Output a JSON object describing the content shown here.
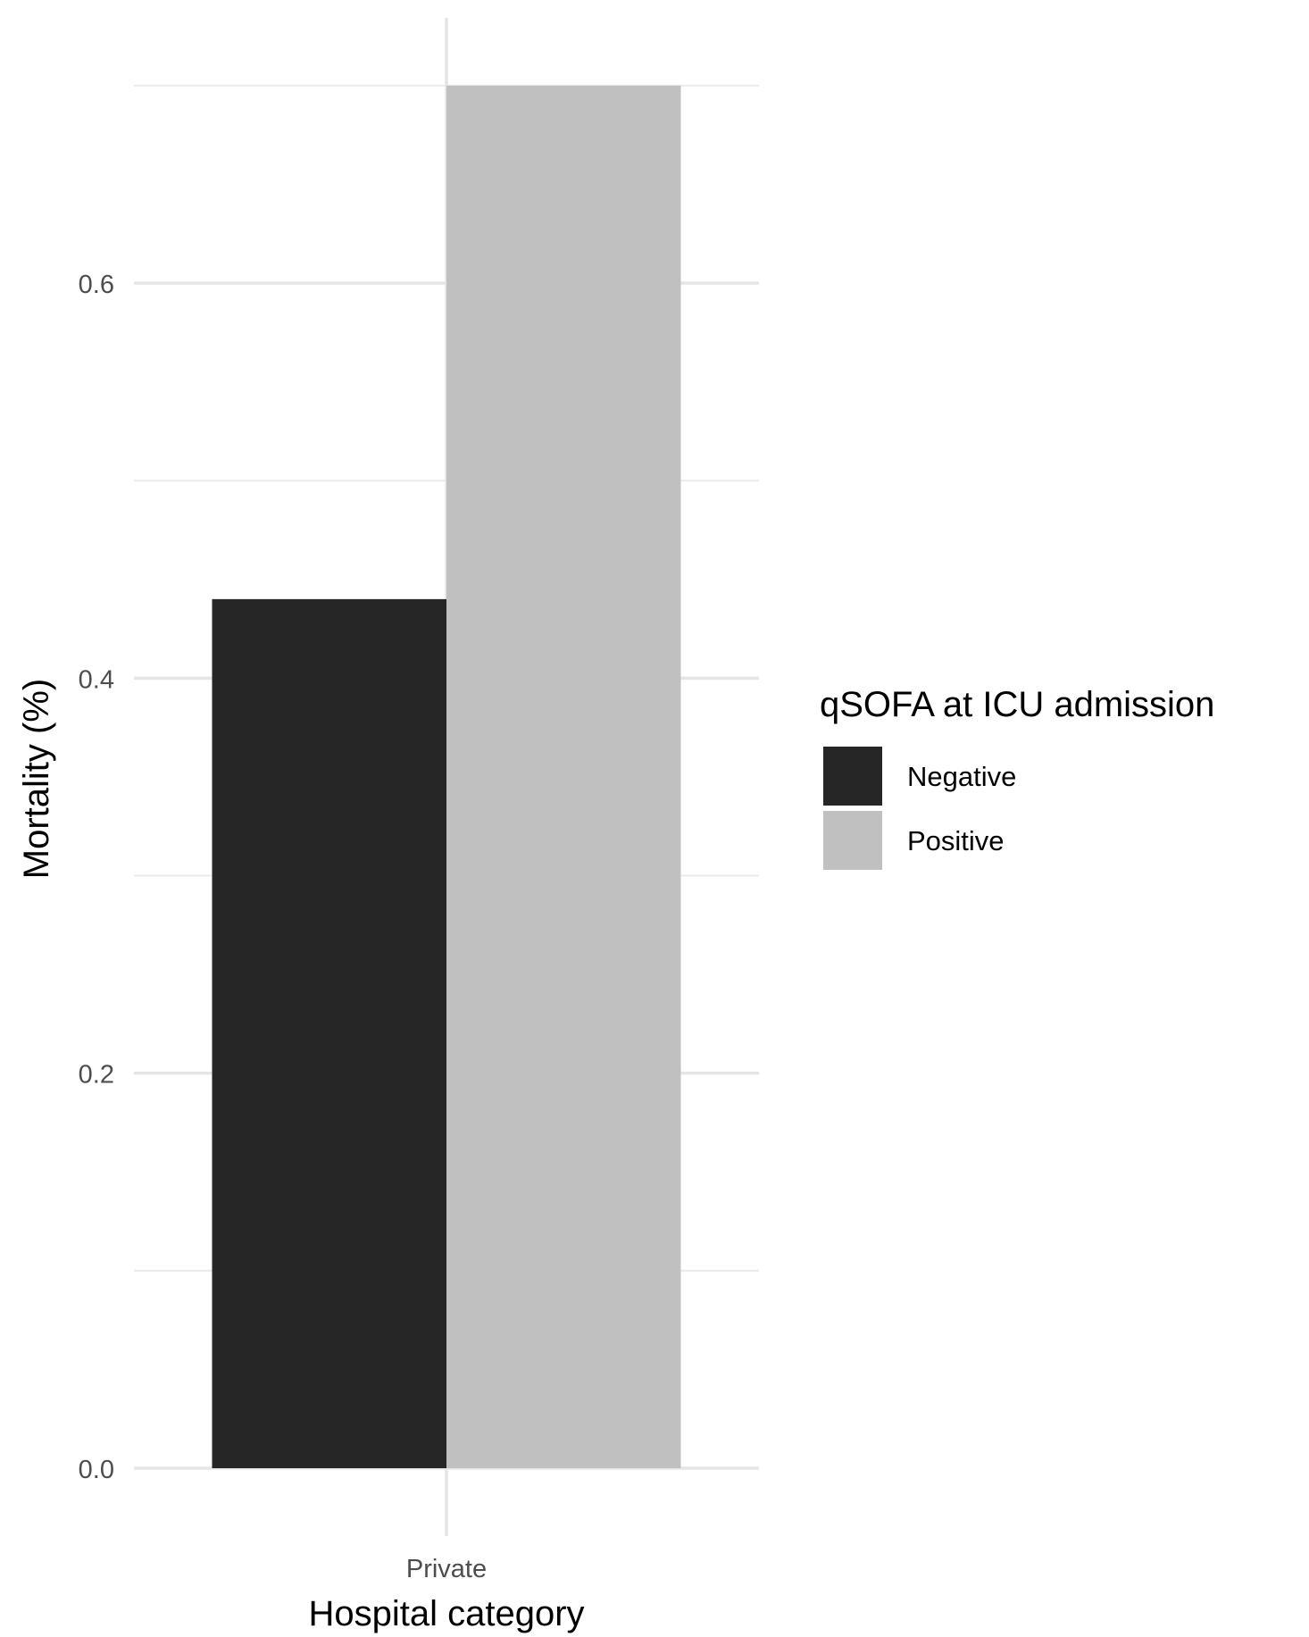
{
  "chart_data": {
    "type": "bar",
    "xlabel": "Hospital category",
    "ylabel": "Mortality (%)",
    "categories": [
      "Private"
    ],
    "series": [
      {
        "name": "Negative",
        "values": [
          0.44
        ],
        "color": "#262626"
      },
      {
        "name": "Positive",
        "values": [
          0.7
        ],
        "color": "#c0c0c0"
      }
    ],
    "ylim": [
      0,
      0.7
    ],
    "yticks": [
      0.0,
      0.2,
      0.4,
      0.6
    ],
    "ytick_labels": [
      "0.0",
      "0.2",
      "0.4",
      "0.6"
    ],
    "grid": true,
    "legend": {
      "title": "qSOFA at ICU admission",
      "placement": "right",
      "entries": [
        "Negative",
        "Positive"
      ]
    }
  }
}
